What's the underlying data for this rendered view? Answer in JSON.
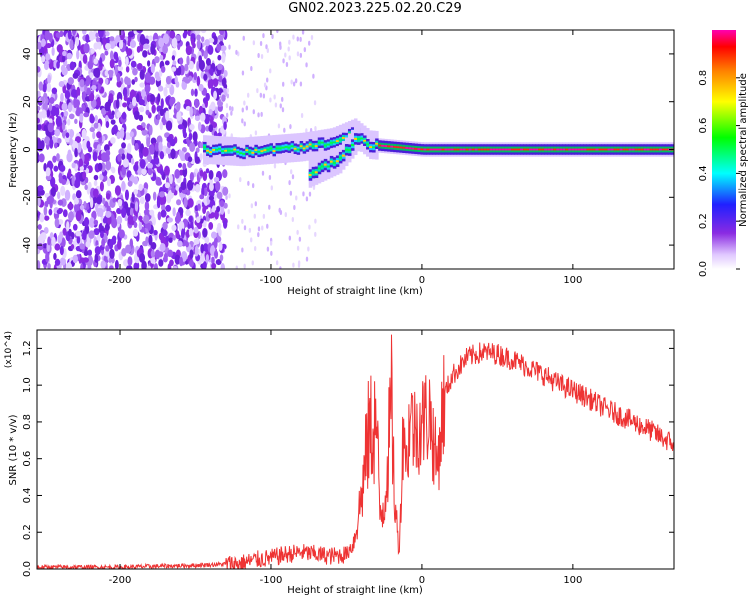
{
  "title": "GN02.2023.225.02.20.C29",
  "chart_data": [
    {
      "type": "heatmap",
      "xlabel": "Height of straight line (km)",
      "ylabel": "Frequency (Hz)",
      "xlim": [
        -255,
        167
      ],
      "ylim": [
        -50,
        50
      ],
      "xticks": [
        -200,
        -100,
        0,
        100
      ],
      "yticks": [
        -40,
        -20,
        0,
        20,
        40
      ],
      "colorbar": {
        "label": "Normalized spectral amplitude",
        "range": [
          0,
          1
        ],
        "ticks": [
          "0.0",
          "0.2",
          "0.4",
          "0.6",
          "0.8"
        ],
        "colormap": "rainbow (white-violet-blue-cyan-green-yellow-orange-red-magenta)"
      },
      "features": {
        "noise_region_x": [
          -255,
          -130
        ],
        "signal_track": [
          {
            "x": -145,
            "y": 0
          },
          {
            "x": -120,
            "y": -1
          },
          {
            "x": -100,
            "y": 0
          },
          {
            "x": -80,
            "y": 1
          },
          {
            "x": -60,
            "y": 3
          },
          {
            "x": -45,
            "y": 7
          },
          {
            "x": -35,
            "y": 2
          },
          {
            "x": 0,
            "y": 0
          },
          {
            "x": 167,
            "y": 0
          }
        ],
        "branch_track": [
          {
            "x": -75,
            "y": -10
          },
          {
            "x": -55,
            "y": -4
          },
          {
            "x": -42,
            "y": 6
          }
        ]
      }
    },
    {
      "type": "line",
      "xlabel": "Height of straight line (km)",
      "ylabel": "SNR (10 * v/v)",
      "yscale_label": "(x10^4)",
      "xlim": [
        -255,
        167
      ],
      "ylim": [
        0,
        1.3
      ],
      "xticks": [
        -200,
        -100,
        0,
        100
      ],
      "yticks": [
        "0.0",
        "0.2",
        "0.4",
        "0.6",
        "0.8",
        "1.0",
        "1.2"
      ],
      "color": "#ee3333",
      "series": [
        {
          "x": [
            -255,
            -200,
            -150,
            -120,
            -110,
            -100,
            -90,
            -80,
            -70,
            -60,
            -50,
            -45,
            -40,
            -35,
            -30,
            -28,
            -25,
            -20,
            -18,
            -15,
            -12,
            -10,
            -8,
            -5,
            0,
            5,
            10,
            15,
            20,
            30,
            40,
            50,
            60,
            70,
            80,
            90,
            100,
            110,
            120,
            130,
            140,
            150,
            160,
            167
          ],
          "y": [
            0.01,
            0.01,
            0.02,
            0.03,
            0.05,
            0.06,
            0.08,
            0.09,
            0.08,
            0.07,
            0.08,
            0.15,
            0.4,
            0.75,
            0.8,
            0.3,
            0.35,
            0.9,
            0.35,
            0.1,
            0.85,
            0.55,
            0.85,
            0.75,
            0.8,
            0.85,
            0.55,
            0.95,
            1.05,
            1.15,
            1.18,
            1.17,
            1.14,
            1.1,
            1.06,
            1.01,
            0.97,
            0.93,
            0.88,
            0.84,
            0.8,
            0.76,
            0.71,
            0.68
          ]
        }
      ]
    }
  ]
}
